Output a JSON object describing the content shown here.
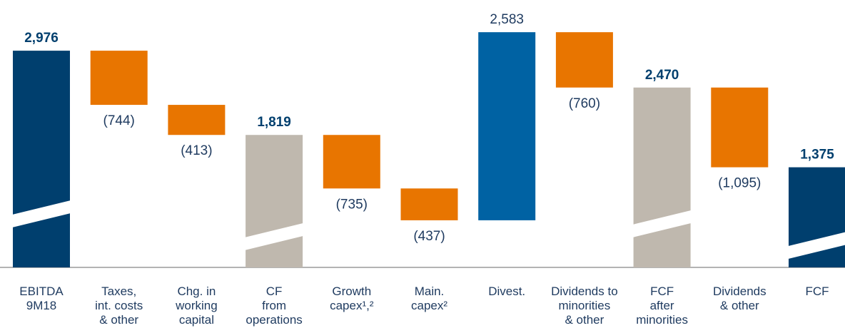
{
  "chart_data": {
    "type": "waterfall",
    "categories": [
      [
        "EBITDA",
        "9M18"
      ],
      [
        "Taxes,",
        "int. costs",
        "& other"
      ],
      [
        "Chg. in",
        "working",
        "capital"
      ],
      [
        "CF",
        "from",
        "operations"
      ],
      [
        "Growth",
        "capex¹,²"
      ],
      [
        "Main.",
        "capex²"
      ],
      [
        "Divest."
      ],
      [
        "Dividends to",
        "minorities",
        "& other"
      ],
      [
        "FCF",
        "after",
        "minorities"
      ],
      [
        "Dividends",
        "& other"
      ],
      [
        "FCF"
      ]
    ],
    "measures": [
      "total",
      "relative",
      "relative",
      "total",
      "relative",
      "relative",
      "relative",
      "relative",
      "total",
      "relative",
      "total"
    ],
    "values": [
      2976,
      -744,
      -413,
      1819,
      -735,
      -437,
      2583,
      -760,
      2470,
      -1095,
      1375
    ],
    "value_labels": [
      "2,976",
      "(744)",
      "(413)",
      "1,819",
      "(735)",
      "(437)",
      "2,583",
      "(760)",
      "2,470",
      "(1,095)",
      "1,375"
    ],
    "colors": [
      "#003f6e",
      "#e87500",
      "#e87500",
      "#bfb8ae",
      "#e87500",
      "#e87500",
      "#0062a3",
      "#e87500",
      "#bfb8ae",
      "#e87500",
      "#003f6e"
    ],
    "ylim": [
      0,
      3300
    ]
  }
}
